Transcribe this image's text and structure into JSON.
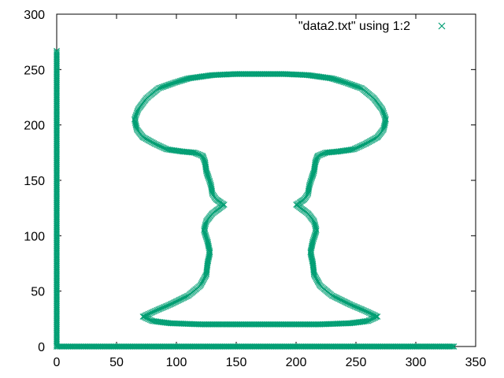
{
  "chart_data": {
    "type": "scatter",
    "title": "",
    "xlabel": "",
    "ylabel": "",
    "xlim": [
      0,
      350
    ],
    "ylim": [
      0,
      300
    ],
    "xticks": [
      0,
      50,
      100,
      150,
      200,
      250,
      300,
      350
    ],
    "yticks": [
      0,
      50,
      100,
      150,
      200,
      250,
      300
    ],
    "xtick_labels": [
      "0",
      "50",
      "100",
      "150",
      "200",
      "250",
      "300",
      "350"
    ],
    "ytick_labels": [
      "0",
      "50",
      "100",
      "150",
      "200",
      "250",
      "300"
    ],
    "grid": false,
    "legend": "top-right",
    "marker": "x",
    "color": "#009e73",
    "series": [
      {
        "name": "\"data2.txt\" using 1:2",
        "segments": [
          [
            [
              0,
              0
            ],
            [
              0,
              50
            ],
            [
              0,
              100
            ],
            [
              0,
              150
            ],
            [
              0,
              200
            ],
            [
              0,
              250
            ],
            [
              0,
              268
            ]
          ],
          [
            [
              0,
              0
            ],
            [
              50,
              0
            ],
            [
              100,
              0
            ],
            [
              150,
              0
            ],
            [
              200,
              0
            ],
            [
              250,
              0
            ],
            [
              300,
              0
            ],
            [
              333,
              0
            ]
          ],
          [
            [
              170,
              246
            ],
            [
              150,
              246
            ],
            [
              130,
              245
            ],
            [
              110,
              242
            ],
            [
              98,
              238
            ],
            [
              85,
              233
            ],
            [
              75,
              224
            ],
            [
              68,
              214
            ],
            [
              65,
              205
            ],
            [
              67,
              196
            ],
            [
              72,
              189
            ],
            [
              82,
              183
            ],
            [
              92,
              178
            ],
            [
              105,
              176
            ],
            [
              115,
              175
            ],
            [
              122,
              172
            ],
            [
              124,
              166
            ],
            [
              125,
              158
            ],
            [
              127,
              152
            ],
            [
              129,
              145
            ],
            [
              130,
              138
            ],
            [
              133,
              133
            ],
            [
              137,
              130
            ],
            [
              140,
              128
            ],
            [
              135,
              124
            ],
            [
              130,
              120
            ],
            [
              125,
              113
            ],
            [
              123,
              105
            ],
            [
              126,
              95
            ],
            [
              128,
              85
            ],
            [
              126,
              75
            ],
            [
              125,
              65
            ],
            [
              120,
              55
            ],
            [
              110,
              46
            ],
            [
              95,
              38
            ],
            [
              82,
              32
            ],
            [
              72,
              27
            ],
            [
              80,
              23
            ],
            [
              95,
              21
            ],
            [
              120,
              20
            ],
            [
              150,
              20
            ],
            [
              170,
              20
            ],
            [
              190,
              20
            ],
            [
              220,
              20
            ],
            [
              245,
              21
            ],
            [
              260,
              23
            ],
            [
              268,
              27
            ],
            [
              258,
              32
            ],
            [
              245,
              38
            ],
            [
              230,
              46
            ],
            [
              220,
              55
            ],
            [
              215,
              65
            ],
            [
              214,
              75
            ],
            [
              212,
              85
            ],
            [
              214,
              95
            ],
            [
              217,
              105
            ],
            [
              215,
              113
            ],
            [
              210,
              120
            ],
            [
              205,
              124
            ],
            [
              200,
              128
            ],
            [
              203,
              130
            ],
            [
              207,
              133
            ],
            [
              210,
              138
            ],
            [
              211,
              145
            ],
            [
              213,
              152
            ],
            [
              215,
              158
            ],
            [
              216,
              166
            ],
            [
              218,
              172
            ],
            [
              225,
              175
            ],
            [
              235,
              176
            ],
            [
              248,
              178
            ],
            [
              258,
              183
            ],
            [
              268,
              189
            ],
            [
              273,
              196
            ],
            [
              275,
              205
            ],
            [
              272,
              214
            ],
            [
              265,
              224
            ],
            [
              255,
              233
            ],
            [
              242,
              238
            ],
            [
              230,
              242
            ],
            [
              210,
              245
            ],
            [
              190,
              246
            ],
            [
              170,
              246
            ]
          ]
        ]
      }
    ]
  }
}
